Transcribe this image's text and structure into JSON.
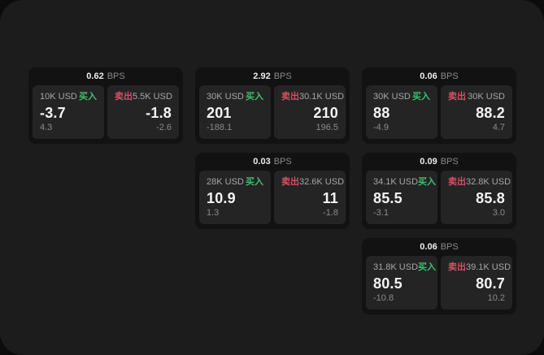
{
  "labels": {
    "bps": "BPS",
    "buy": "买入",
    "sell": "卖出"
  },
  "colors": {
    "page_bg": "#0c0c0d",
    "surface_bg": "#1c1c1d",
    "card_bg": "#121213",
    "panel_bg": "#242425",
    "buy_accent": "#3fbf6f",
    "sell_accent": "#d64f63",
    "value_text": "#f4f4f4",
    "amount_text": "#a6a6a6",
    "muted_text": "#8a8a8a"
  },
  "cards": [
    {
      "bps": "0.62",
      "buy": {
        "amount": "10K USD",
        "value": "-3.7",
        "delta": "4.3"
      },
      "sell": {
        "amount": "5.5K USD",
        "value": "-1.8",
        "delta": "-2.6"
      }
    },
    {
      "bps": "2.92",
      "buy": {
        "amount": "30K USD",
        "value": "201",
        "delta": "-188.1"
      },
      "sell": {
        "amount": "30.1K USD",
        "value": "210",
        "delta": "196.5"
      }
    },
    {
      "bps": "0.06",
      "buy": {
        "amount": "30K USD",
        "value": "88",
        "delta": "-4.9"
      },
      "sell": {
        "amount": "30K USD",
        "value": "88.2",
        "delta": "4.7"
      }
    },
    {
      "bps": "0.03",
      "buy": {
        "amount": "28K USD",
        "value": "10.9",
        "delta": "1.3"
      },
      "sell": {
        "amount": "32.6K USD",
        "value": "11",
        "delta": "-1.8"
      }
    },
    {
      "bps": "0.09",
      "buy": {
        "amount": "34.1K USD",
        "value": "85.5",
        "delta": "-3.1"
      },
      "sell": {
        "amount": "32.8K USD",
        "value": "85.8",
        "delta": "3.0"
      }
    },
    {
      "bps": "0.06",
      "buy": {
        "amount": "31.8K USD",
        "value": "80.5",
        "delta": "-10.8"
      },
      "sell": {
        "amount": "39.1K USD",
        "value": "80.7",
        "delta": "10.2"
      }
    }
  ]
}
